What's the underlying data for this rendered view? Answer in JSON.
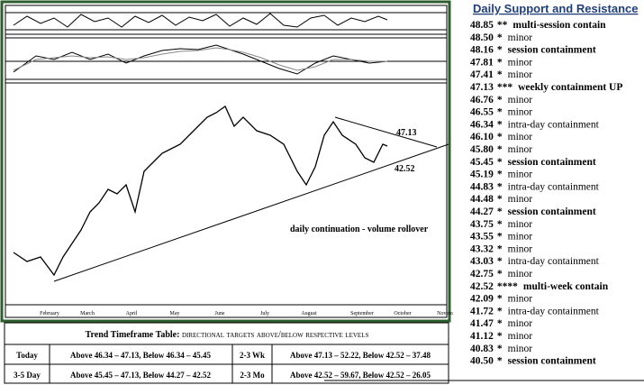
{
  "sidebar": {
    "title": "Daily Support and Resistance",
    "levels": [
      {
        "price": "48.85",
        "stars": "**",
        "note": "multi-session contain",
        "emphasis": true
      },
      {
        "price": "48.50",
        "stars": "*",
        "note": "minor",
        "emphasis": false
      },
      {
        "price": "48.16",
        "stars": "*",
        "note": "session containment",
        "emphasis": true
      },
      {
        "price": "47.81",
        "stars": "*",
        "note": "minor",
        "emphasis": false
      },
      {
        "price": "47.41",
        "stars": "*",
        "note": "minor",
        "emphasis": false
      },
      {
        "price": "47.13",
        "stars": "***",
        "note": "weekly containment UP",
        "emphasis": true
      },
      {
        "price": "46.76",
        "stars": "*",
        "note": "minor",
        "emphasis": false
      },
      {
        "price": "46.55",
        "stars": "*",
        "note": "minor",
        "emphasis": false
      },
      {
        "price": "46.34",
        "stars": "*",
        "note": "intra-day containment",
        "emphasis": false
      },
      {
        "price": "46.10",
        "stars": "*",
        "note": "minor",
        "emphasis": false
      },
      {
        "price": "45.80",
        "stars": "*",
        "note": "minor",
        "emphasis": false
      },
      {
        "price": "45.45",
        "stars": "*",
        "note": "session containment",
        "emphasis": true
      },
      {
        "price": "45.19",
        "stars": "*",
        "note": "minor",
        "emphasis": false
      },
      {
        "price": "44.83",
        "stars": "*",
        "note": "intra-day containment",
        "emphasis": false
      },
      {
        "price": "44.48",
        "stars": "*",
        "note": "minor",
        "emphasis": false
      },
      {
        "price": "44.27",
        "stars": "*",
        "note": "session containment",
        "emphasis": true
      },
      {
        "price": "43.75",
        "stars": "*",
        "note": "minor",
        "emphasis": false
      },
      {
        "price": "43.55",
        "stars": "*",
        "note": "minor",
        "emphasis": false
      },
      {
        "price": "43.32",
        "stars": "*",
        "note": "minor",
        "emphasis": false
      },
      {
        "price": "43.03",
        "stars": "*",
        "note": "intra-day containment",
        "emphasis": false
      },
      {
        "price": "42.75",
        "stars": "*",
        "note": "minor",
        "emphasis": false
      },
      {
        "price": "42.52",
        "stars": "****",
        "note": "multi-week contain",
        "emphasis": true
      },
      {
        "price": "42.09",
        "stars": "*",
        "note": "minor",
        "emphasis": false
      },
      {
        "price": "41.72",
        "stars": "*",
        "note": "intra-day containment",
        "emphasis": false
      },
      {
        "price": "41.47",
        "stars": "*",
        "note": "minor",
        "emphasis": false
      },
      {
        "price": "41.12",
        "stars": "*",
        "note": "minor",
        "emphasis": false
      },
      {
        "price": "40.83",
        "stars": "*",
        "note": "minor",
        "emphasis": false
      },
      {
        "price": "40.50",
        "stars": "*",
        "note": "session containment",
        "emphasis": true
      }
    ]
  },
  "chart": {
    "annotations": [
      "47.13",
      "42.52",
      "daily continuation - volume rollover"
    ],
    "months": [
      "February",
      "March",
      "April",
      "May",
      "June",
      "July",
      "August",
      "September",
      "October",
      "Novem"
    ]
  },
  "table": {
    "title": "Trend Timeframe Table:",
    "subtitle": "directional targets above/below respective levels",
    "rows": [
      [
        "Today",
        "Above 46.34 – 47.13, Below 46.34 – 45.45",
        "2-3 Wk",
        "Above 47.13 – 52.22, Below 42.52 – 37.48"
      ],
      [
        "3-5 Day",
        "Above 45.45 – 47.13, Below 44.27 – 42.52",
        "2-3 Mo",
        "Above 42.52 – 59.67, Below 42.52 – 26.05"
      ]
    ]
  }
}
